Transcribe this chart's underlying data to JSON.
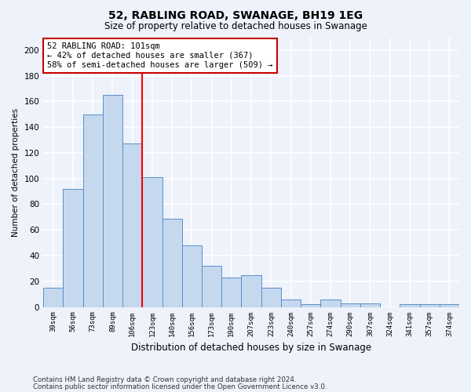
{
  "title": "52, RABLING ROAD, SWANAGE, BH19 1EG",
  "subtitle": "Size of property relative to detached houses in Swanage",
  "xlabel": "Distribution of detached houses by size in Swanage",
  "ylabel": "Number of detached properties",
  "categories": [
    "39sqm",
    "56sqm",
    "73sqm",
    "89sqm",
    "106sqm",
    "123sqm",
    "140sqm",
    "156sqm",
    "173sqm",
    "190sqm",
    "207sqm",
    "223sqm",
    "240sqm",
    "257sqm",
    "274sqm",
    "290sqm",
    "307sqm",
    "324sqm",
    "341sqm",
    "357sqm",
    "374sqm"
  ],
  "values": [
    15,
    92,
    150,
    165,
    127,
    101,
    69,
    48,
    32,
    23,
    25,
    15,
    6,
    2,
    6,
    3,
    3,
    0,
    2,
    2,
    2
  ],
  "bar_color": "#c5d8ee",
  "bar_edge_color": "#5b8fc9",
  "background_color": "#edf2fb",
  "grid_color": "#ffffff",
  "red_line_x": 4.5,
  "annotation_line1": "52 RABLING ROAD: 101sqm",
  "annotation_line2": "← 42% of detached houses are smaller (367)",
  "annotation_line3": "58% of semi-detached houses are larger (509) →",
  "annotation_box_color": "#ffffff",
  "annotation_box_edge_color": "#cc0000",
  "ylim": [
    0,
    210
  ],
  "yticks": [
    0,
    20,
    40,
    60,
    80,
    100,
    120,
    140,
    160,
    180,
    200
  ],
  "footnote1": "Contains HM Land Registry data © Crown copyright and database right 2024.",
  "footnote2": "Contains public sector information licensed under the Open Government Licence v3.0."
}
